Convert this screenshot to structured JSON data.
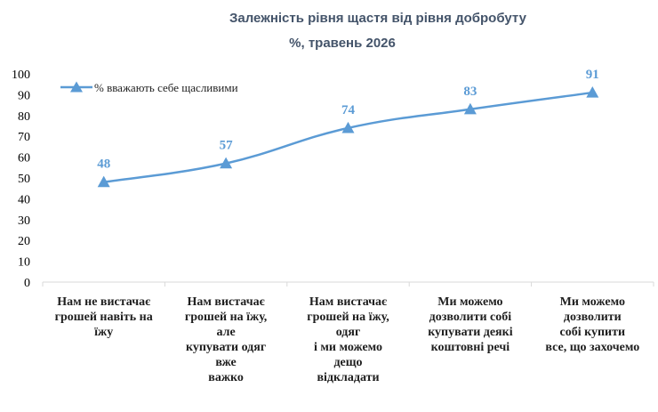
{
  "chart_data": {
    "type": "line",
    "title": "Залежність рівня щастя від рівня добробуту",
    "subtitle": "%,  травень 2026",
    "categories": [
      [
        "Нам не вистачає",
        "грошей навіть на",
        "їжу"
      ],
      [
        "Нам вистачає",
        "грошей на їжу,",
        "але",
        "купувати одяг",
        "вже",
        "важко"
      ],
      [
        "Нам вистачає",
        "грошей на їжу,",
        "одяг",
        "і ми можемо",
        "дещо",
        "відкладати"
      ],
      [
        "Ми можемо",
        "дозволити собі",
        "купувати деякі",
        "коштовні речі"
      ],
      [
        "Ми можемо",
        "дозволити",
        "собі купити",
        "все, що захочемо"
      ]
    ],
    "series": [
      {
        "name": "% вважають себе щасливими",
        "values": [
          48,
          57,
          74,
          83,
          91
        ]
      }
    ],
    "ylim": [
      0,
      100
    ],
    "yticks": [
      0,
      10,
      20,
      30,
      40,
      50,
      60,
      70,
      80,
      90,
      100
    ],
    "grid": false,
    "legend": "top-left",
    "colors": {
      "series": "#5b9bd5",
      "axis": "#d9d9d9",
      "title": "#44546a"
    }
  }
}
